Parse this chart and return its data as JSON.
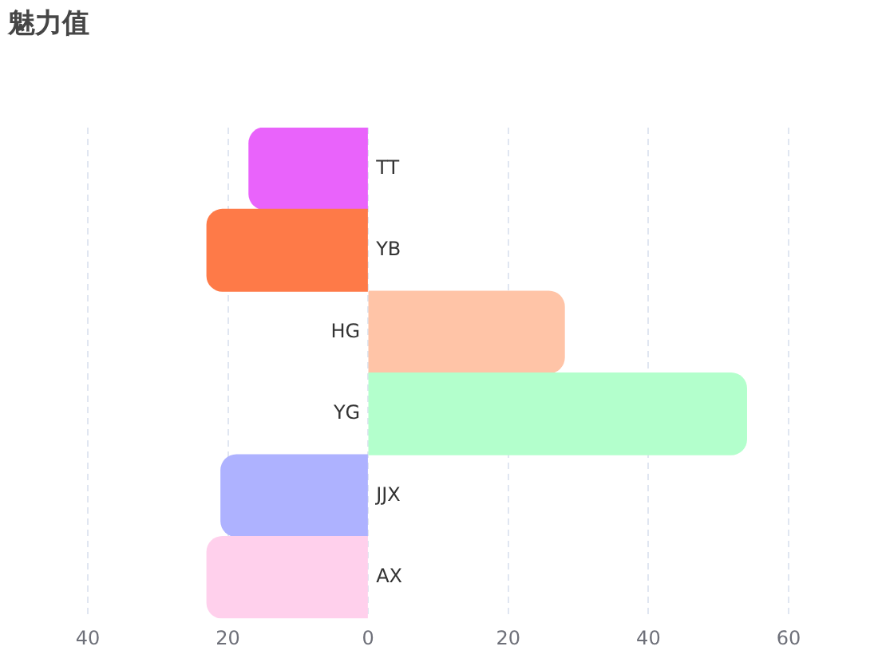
{
  "chart_data": {
    "type": "bar",
    "orientation": "horizontal",
    "title": "魅力值",
    "categories": [
      "TT",
      "YB",
      "HG",
      "YG",
      "JJX",
      "AX"
    ],
    "values": [
      -17,
      -23,
      28,
      54,
      -21,
      -23
    ],
    "colors": [
      "#e963fb",
      "#fe7a48",
      "#ffc4a7",
      "#b3ffcc",
      "#aeb2ff",
      "#ffd0ec"
    ],
    "xlim": [
      -40,
      60
    ],
    "xticks": [
      {
        "value": -40,
        "label": "40"
      },
      {
        "value": -20,
        "label": "20"
      },
      0,
      20,
      40,
      60
    ],
    "grid": "x"
  }
}
